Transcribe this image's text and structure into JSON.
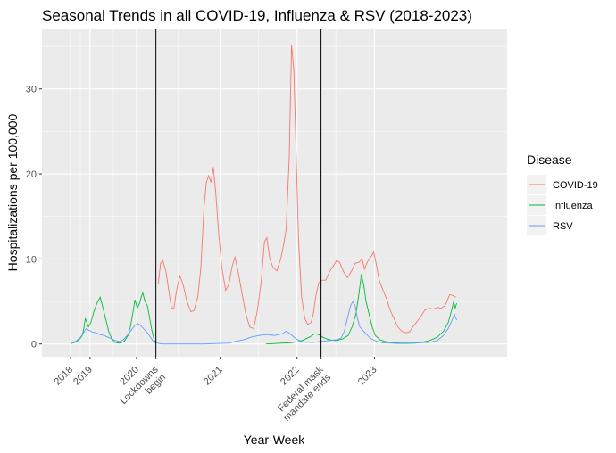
{
  "chart_data": {
    "type": "line",
    "title": "Seasonal Trends in all COVID-19, Influenza & RSV (2018-2023)",
    "xlabel": "Year-Week",
    "ylabel": "Hospitalizations per 100,000",
    "ylim": [
      -1.5,
      37
    ],
    "yticks": [
      0,
      10,
      20,
      30
    ],
    "xlim": [
      2017.5,
      2023.5
    ],
    "xticks": [
      {
        "x": 2017.87,
        "label": "2018"
      },
      {
        "x": 2018.12,
        "label": "2019"
      },
      {
        "x": 2018.72,
        "label": "2020"
      },
      {
        "x": 2019.8,
        "label": "2021"
      },
      {
        "x": 2020.79,
        "label": "2022"
      },
      {
        "x": 2021.79,
        "label": "2023"
      }
    ],
    "annotations": [
      {
        "x": 2018.97,
        "label": "Lockdowns\nbegin"
      },
      {
        "x": 2021.1,
        "label": "Federal mask\nmandate ends"
      }
    ],
    "vlines": [
      2018.97,
      2021.1
    ],
    "grid": true,
    "legend": {
      "title": "Disease",
      "placement": "right"
    },
    "series": [
      {
        "name": "COVID-19",
        "color": "#F8766D",
        "points": [
          [
            2019.0,
            7
          ],
          [
            2019.03,
            9.5
          ],
          [
            2019.06,
            9.8
          ],
          [
            2019.1,
            8.5
          ],
          [
            2019.14,
            6
          ],
          [
            2019.17,
            4.3
          ],
          [
            2019.2,
            4.1
          ],
          [
            2019.24,
            6.5
          ],
          [
            2019.28,
            8
          ],
          [
            2019.32,
            7
          ],
          [
            2019.37,
            5
          ],
          [
            2019.42,
            3.8
          ],
          [
            2019.46,
            3.9
          ],
          [
            2019.51,
            5.5
          ],
          [
            2019.55,
            9
          ],
          [
            2019.59,
            16
          ],
          [
            2019.62,
            19
          ],
          [
            2019.65,
            19.8
          ],
          [
            2019.68,
            19
          ],
          [
            2019.71,
            20.8
          ],
          [
            2019.74,
            18
          ],
          [
            2019.78,
            13
          ],
          [
            2019.82,
            9
          ],
          [
            2019.87,
            6.3
          ],
          [
            2019.91,
            7
          ],
          [
            2019.95,
            9
          ],
          [
            2019.99,
            10.2
          ],
          [
            2020.03,
            8.5
          ],
          [
            2020.08,
            6
          ],
          [
            2020.13,
            3.5
          ],
          [
            2020.18,
            2
          ],
          [
            2020.23,
            1.8
          ],
          [
            2020.28,
            4
          ],
          [
            2020.33,
            7.5
          ],
          [
            2020.37,
            12
          ],
          [
            2020.4,
            12.5
          ],
          [
            2020.44,
            10
          ],
          [
            2020.48,
            9
          ],
          [
            2020.53,
            8.6
          ],
          [
            2020.58,
            10
          ],
          [
            2020.62,
            11.8
          ],
          [
            2020.65,
            13.5
          ],
          [
            2020.69,
            22
          ],
          [
            2020.72,
            35.2
          ],
          [
            2020.75,
            32
          ],
          [
            2020.78,
            22
          ],
          [
            2020.81,
            12
          ],
          [
            2020.85,
            5.5
          ],
          [
            2020.89,
            3
          ],
          [
            2020.93,
            2.3
          ],
          [
            2020.97,
            2.5
          ],
          [
            2021.0,
            3.5
          ],
          [
            2021.03,
            5.5
          ],
          [
            2021.07,
            7.2
          ],
          [
            2021.11,
            7.5
          ],
          [
            2021.16,
            7.5
          ],
          [
            2021.21,
            8.5
          ],
          [
            2021.26,
            9.2
          ],
          [
            2021.3,
            9.8
          ],
          [
            2021.34,
            9.6
          ],
          [
            2021.39,
            8.5
          ],
          [
            2021.44,
            7.8
          ],
          [
            2021.49,
            8.5
          ],
          [
            2021.54,
            9.5
          ],
          [
            2021.59,
            9.6
          ],
          [
            2021.63,
            10
          ],
          [
            2021.66,
            8.8
          ],
          [
            2021.7,
            9.7
          ],
          [
            2021.74,
            10.2
          ],
          [
            2021.78,
            10.8
          ],
          [
            2021.81,
            9.5
          ],
          [
            2021.85,
            7.5
          ],
          [
            2021.9,
            6.3
          ],
          [
            2021.95,
            5.2
          ],
          [
            2021.99,
            4
          ],
          [
            2022.04,
            3
          ],
          [
            2022.09,
            2
          ],
          [
            2022.14,
            1.5
          ],
          [
            2022.19,
            1.3
          ],
          [
            2022.24,
            1.4
          ],
          [
            2022.3,
            2.2
          ],
          [
            2022.37,
            3
          ],
          [
            2022.44,
            4
          ],
          [
            2022.5,
            4.2
          ],
          [
            2022.55,
            4.1
          ],
          [
            2022.6,
            4.3
          ],
          [
            2022.65,
            4.2
          ],
          [
            2022.7,
            4.5
          ],
          [
            2022.76,
            5.8
          ],
          [
            2022.8,
            5.7
          ],
          [
            2022.84,
            5.5
          ]
        ]
      },
      {
        "name": "Influenza",
        "color": "#00BA38",
        "points": [
          [
            2017.87,
            0.05
          ],
          [
            2017.91,
            0.15
          ],
          [
            2017.95,
            0.3
          ],
          [
            2017.99,
            0.6
          ],
          [
            2018.02,
            1
          ],
          [
            2018.04,
            1.8
          ],
          [
            2018.06,
            3
          ],
          [
            2018.08,
            2.5
          ],
          [
            2018.1,
            2
          ],
          [
            2018.13,
            2.5
          ],
          [
            2018.17,
            3.8
          ],
          [
            2018.21,
            4.8
          ],
          [
            2018.25,
            5.5
          ],
          [
            2018.28,
            4.5
          ],
          [
            2018.32,
            3
          ],
          [
            2018.36,
            1.5
          ],
          [
            2018.4,
            0.6
          ],
          [
            2018.44,
            0.2
          ],
          [
            2018.5,
            0.1
          ],
          [
            2018.56,
            0.3
          ],
          [
            2018.61,
            1
          ],
          [
            2018.64,
            2
          ],
          [
            2018.67,
            3.5
          ],
          [
            2018.7,
            5.2
          ],
          [
            2018.73,
            4.2
          ],
          [
            2018.76,
            4.8
          ],
          [
            2018.78,
            5.5
          ],
          [
            2018.8,
            6
          ],
          [
            2018.83,
            5
          ],
          [
            2018.86,
            4.5
          ],
          [
            2018.89,
            3
          ],
          [
            2018.92,
            1.5
          ],
          [
            2018.95,
            0.4
          ],
          [
            2018.98,
            0.1
          ],
          [
            2020.39,
            0
          ],
          [
            2020.5,
            0.05
          ],
          [
            2020.6,
            0.1
          ],
          [
            2020.7,
            0.15
          ],
          [
            2020.8,
            0.25
          ],
          [
            2020.88,
            0.5
          ],
          [
            2020.95,
            0.8
          ],
          [
            2021.02,
            1.2
          ],
          [
            2021.07,
            1.1
          ],
          [
            2021.12,
            0.8
          ],
          [
            2021.2,
            0.5
          ],
          [
            2021.3,
            0.4
          ],
          [
            2021.38,
            0.6
          ],
          [
            2021.45,
            1
          ],
          [
            2021.5,
            2
          ],
          [
            2021.55,
            3.5
          ],
          [
            2021.59,
            6
          ],
          [
            2021.62,
            8.2
          ],
          [
            2021.65,
            7
          ],
          [
            2021.68,
            5
          ],
          [
            2021.72,
            3.5
          ],
          [
            2021.76,
            2
          ],
          [
            2021.8,
            1
          ],
          [
            2021.86,
            0.5
          ],
          [
            2021.92,
            0.3
          ],
          [
            2022.0,
            0.2
          ],
          [
            2022.1,
            0.1
          ],
          [
            2022.2,
            0.1
          ],
          [
            2022.3,
            0.1
          ],
          [
            2022.4,
            0.2
          ],
          [
            2022.5,
            0.4
          ],
          [
            2022.6,
            0.8
          ],
          [
            2022.68,
            1.5
          ],
          [
            2022.74,
            2.5
          ],
          [
            2022.78,
            3.8
          ],
          [
            2022.81,
            5
          ],
          [
            2022.83,
            4.2
          ],
          [
            2022.85,
            4.8
          ]
        ]
      },
      {
        "name": "RSV",
        "color": "#619CFF",
        "points": [
          [
            2017.87,
            0.05
          ],
          [
            2017.91,
            0.2
          ],
          [
            2017.95,
            0.4
          ],
          [
            2017.99,
            0.7
          ],
          [
            2018.03,
            1.2
          ],
          [
            2018.07,
            1.8
          ],
          [
            2018.11,
            1.6
          ],
          [
            2018.15,
            1.4
          ],
          [
            2018.2,
            1.3
          ],
          [
            2018.25,
            1.1
          ],
          [
            2018.3,
            1
          ],
          [
            2018.35,
            0.8
          ],
          [
            2018.4,
            0.6
          ],
          [
            2018.45,
            0.4
          ],
          [
            2018.5,
            0.3
          ],
          [
            2018.55,
            0.5
          ],
          [
            2018.6,
            1
          ],
          [
            2018.65,
            1.6
          ],
          [
            2018.7,
            2.2
          ],
          [
            2018.74,
            2.4
          ],
          [
            2018.78,
            2.1
          ],
          [
            2018.82,
            1.7
          ],
          [
            2018.86,
            1.3
          ],
          [
            2018.9,
            0.8
          ],
          [
            2018.93,
            0.4
          ],
          [
            2018.96,
            0.15
          ],
          [
            2019.05,
            0
          ],
          [
            2019.27,
            0
          ],
          [
            2019.4,
            0
          ],
          [
            2019.6,
            0
          ],
          [
            2019.75,
            0.05
          ],
          [
            2019.9,
            0.1
          ],
          [
            2020.0,
            0.3
          ],
          [
            2020.1,
            0.5
          ],
          [
            2020.2,
            0.8
          ],
          [
            2020.3,
            1
          ],
          [
            2020.4,
            1.1
          ],
          [
            2020.5,
            1
          ],
          [
            2020.6,
            1.2
          ],
          [
            2020.65,
            1.5
          ],
          [
            2020.7,
            1.2
          ],
          [
            2020.75,
            0.8
          ],
          [
            2020.8,
            0.5
          ],
          [
            2020.85,
            0.3
          ],
          [
            2020.9,
            0.2
          ],
          [
            2021.0,
            0.2
          ],
          [
            2021.1,
            0.3
          ],
          [
            2021.2,
            0.4
          ],
          [
            2021.3,
            0.5
          ],
          [
            2021.36,
            0.7
          ],
          [
            2021.4,
            1.5
          ],
          [
            2021.44,
            3
          ],
          [
            2021.48,
            4.5
          ],
          [
            2021.51,
            5
          ],
          [
            2021.54,
            4.5
          ],
          [
            2021.57,
            3
          ],
          [
            2021.6,
            2
          ],
          [
            2021.65,
            1.5
          ],
          [
            2021.7,
            1
          ],
          [
            2021.75,
            0.6
          ],
          [
            2021.82,
            0.3
          ],
          [
            2021.9,
            0.15
          ],
          [
            2022.0,
            0.1
          ],
          [
            2022.1,
            0.05
          ],
          [
            2022.2,
            0.05
          ],
          [
            2022.3,
            0.1
          ],
          [
            2022.4,
            0.15
          ],
          [
            2022.5,
            0.2
          ],
          [
            2022.6,
            0.4
          ],
          [
            2022.68,
            1
          ],
          [
            2022.74,
            1.8
          ],
          [
            2022.79,
            2.8
          ],
          [
            2022.82,
            3.5
          ],
          [
            2022.85,
            2.8
          ]
        ]
      }
    ]
  }
}
